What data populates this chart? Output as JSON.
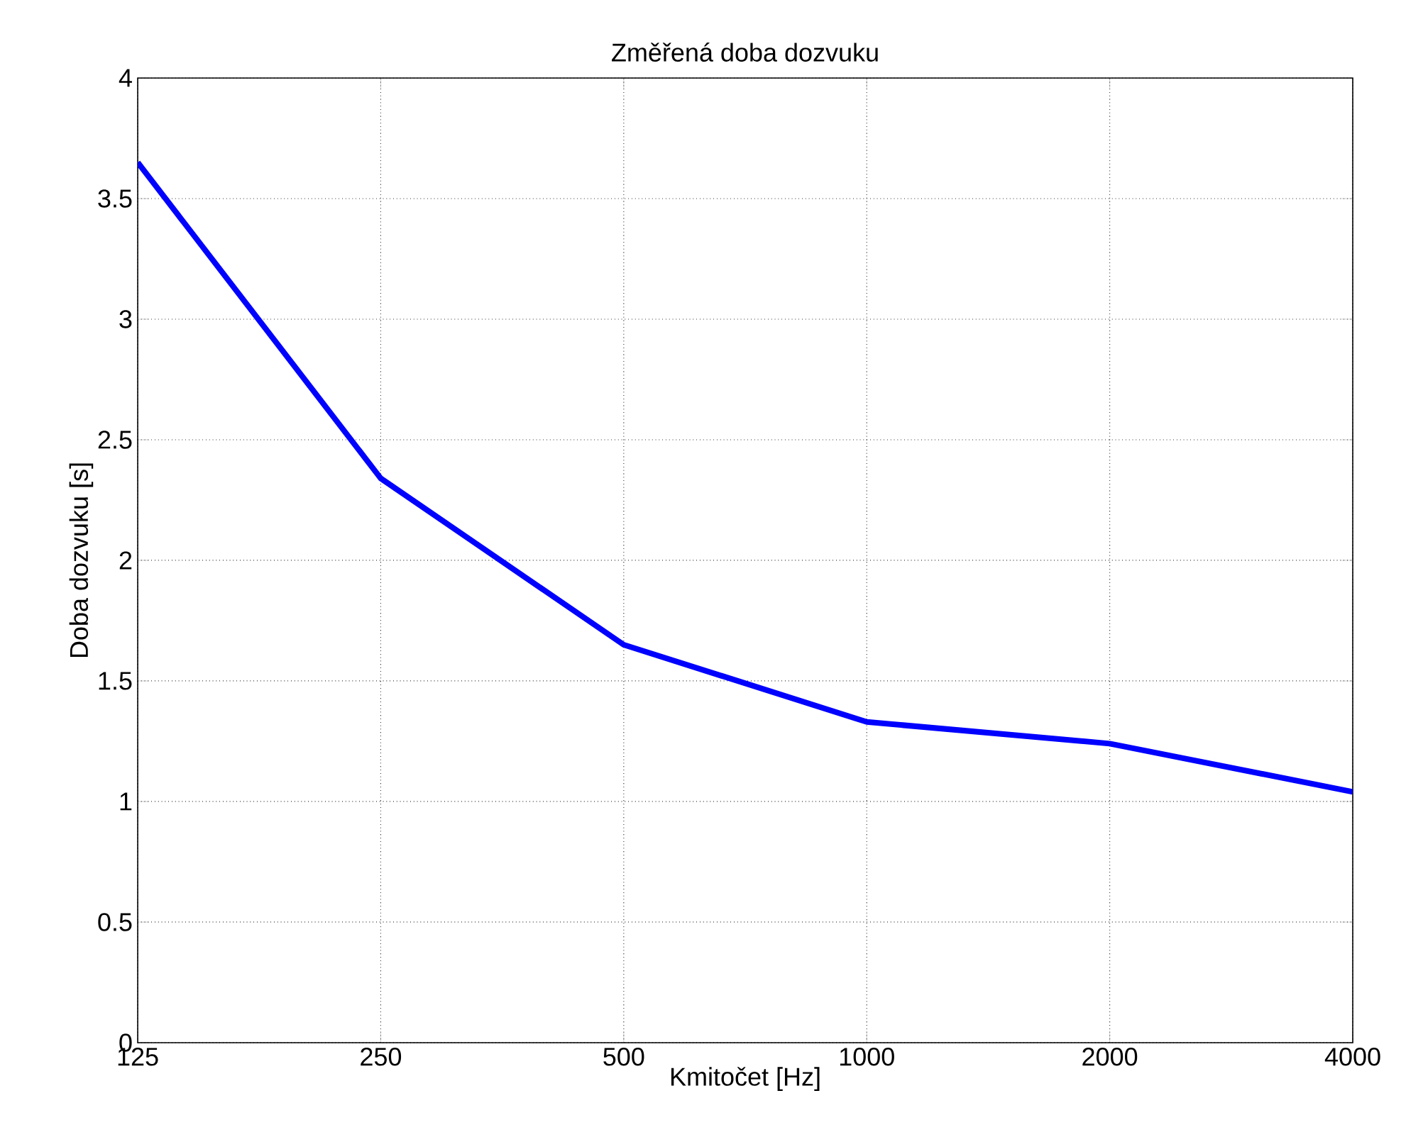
{
  "chart_data": {
    "type": "line",
    "title": "Změřená doba dozvuku",
    "xlabel": "Kmitočet [Hz]",
    "ylabel": "Doba dozvuku [s]",
    "x": [
      125,
      250,
      500,
      1000,
      2000,
      4000
    ],
    "values": [
      3.65,
      2.34,
      1.65,
      1.33,
      1.24,
      1.04
    ],
    "color": "#0000ff",
    "log": "x",
    "xlim": [
      125,
      4000
    ],
    "xticks": [
      125,
      250,
      500,
      1000,
      2000,
      4000
    ],
    "ylim": [
      0,
      4
    ],
    "yticks": [
      0,
      0.5,
      1,
      1.5,
      2,
      2.5,
      3,
      3.5,
      4
    ],
    "grid": true,
    "marker": "none",
    "line_style": "solid"
  }
}
